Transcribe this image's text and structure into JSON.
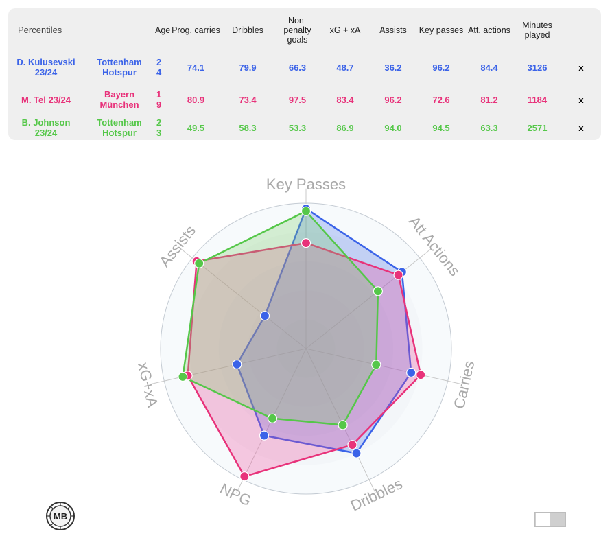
{
  "table": {
    "corner_label": "Percentiles",
    "headers": [
      "Age",
      "Prog. carries",
      "Dribbles",
      "Non-penalty goals",
      "xG + xA",
      "Assists",
      "Key passes",
      "Att. actions",
      "Minutes played"
    ],
    "rows": [
      {
        "player": "D. Kulusevski 23/24",
        "team": "Tottenham Hotspur",
        "age": "24",
        "values": [
          "74.1",
          "79.9",
          "66.3",
          "48.7",
          "36.2",
          "96.2",
          "84.4",
          "3126"
        ],
        "remove": "x",
        "color": "#3b63e8"
      },
      {
        "player": "M. Tel 23/24",
        "team": "Bayern München",
        "age": "19",
        "values": [
          "80.9",
          "73.4",
          "97.5",
          "83.4",
          "96.2",
          "72.6",
          "81.2",
          "1184"
        ],
        "remove": "x",
        "color": "#e8327a"
      },
      {
        "player": "B. Johnson 23/24",
        "team": "Tottenham Hotspur",
        "age": "23",
        "values": [
          "49.5",
          "58.3",
          "53.3",
          "86.9",
          "94.0",
          "94.5",
          "63.3",
          "2571"
        ],
        "remove": "x",
        "color": "#55c749"
      }
    ]
  },
  "chart_data": {
    "type": "radar",
    "axes": [
      "Key Passes",
      "Att Actions",
      "Carries",
      "Dribbles",
      "NPG",
      "xG+xA",
      "Assists"
    ],
    "range": [
      0,
      100
    ],
    "grid": true,
    "series": [
      {
        "name": "D. Kulusevski 23/24",
        "color": "#3b63e8",
        "fill": "rgba(70,110,235,0.28)",
        "values": [
          96.2,
          84.4,
          74.1,
          79.9,
          66.3,
          48.7,
          36.2
        ]
      },
      {
        "name": "M. Tel 23/24",
        "color": "#e8327a",
        "fill": "rgba(236,70,150,0.28)",
        "values": [
          72.6,
          81.2,
          80.9,
          73.4,
          97.5,
          83.4,
          96.2
        ]
      },
      {
        "name": "B. Johnson 23/24",
        "color": "#55c749",
        "fill": "rgba(120,205,100,0.28)",
        "values": [
          94.5,
          63.3,
          49.5,
          58.3,
          53.3,
          86.9,
          94.0
        ]
      }
    ]
  },
  "logo": {
    "text": "MB"
  }
}
